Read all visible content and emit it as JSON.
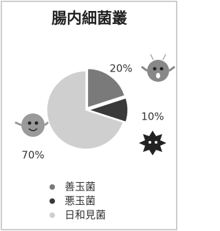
{
  "chart_data": {
    "type": "pie",
    "title": "腸内細菌叢",
    "categories": [
      "善玉菌",
      "悪玉菌",
      "日和見菌"
    ],
    "values": [
      20,
      10,
      70
    ],
    "value_labels": [
      "20%",
      "10%",
      "70%"
    ],
    "colors": [
      "#7a7a7a",
      "#3a3a3a",
      "#cfcfcf"
    ]
  }
}
